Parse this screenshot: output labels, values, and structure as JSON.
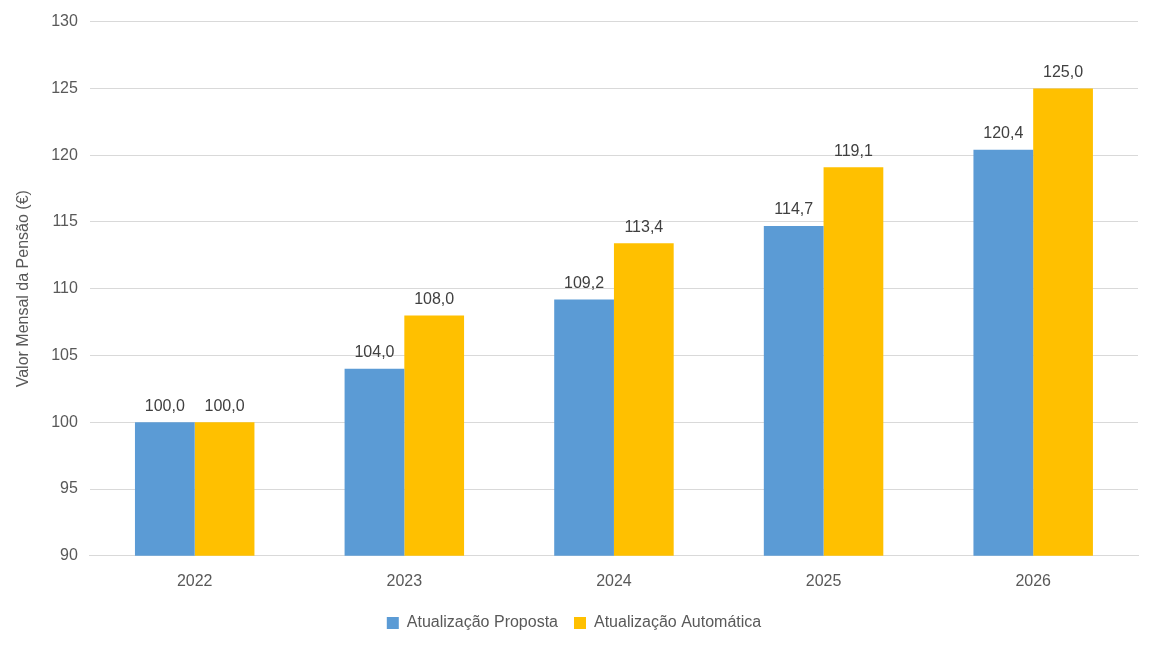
{
  "chart_data": {
    "type": "bar",
    "y_label": "Valor Mensal da Pensão (€)",
    "categories": [
      "2022",
      "2023",
      "2024",
      "2025",
      "2026"
    ],
    "series": [
      {
        "name": "Atualização Proposta",
        "color": "#5b9bd5",
        "values": [
          100.0,
          104.0,
          109.2,
          114.7,
          120.4
        ],
        "value_labels": [
          "100,0",
          "104,0",
          "109,2",
          "114,7",
          "120,4"
        ]
      },
      {
        "name": "Atualização Automática",
        "color": "#ffc000",
        "values": [
          100.0,
          108.0,
          113.4,
          119.1,
          125.0
        ],
        "value_labels": [
          "100,0",
          "108,0",
          "113,4",
          "119,1",
          "125,0"
        ]
      }
    ],
    "ylim": [
      90,
      130
    ],
    "yticks": [
      90,
      95,
      100,
      105,
      110,
      115,
      120,
      125,
      130
    ],
    "grid": true,
    "legend": "bottom",
    "data_labels": true
  }
}
